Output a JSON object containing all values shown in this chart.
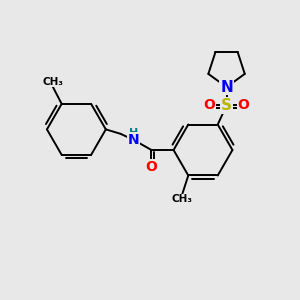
{
  "background_color": "#e8e8e8",
  "bond_color": "#000000",
  "figsize": [
    3.0,
    3.0
  ],
  "dpi": 100,
  "atom_colors": {
    "N": "#0000ff",
    "O": "#ff0000",
    "S": "#b8b800",
    "H": "#008080",
    "C": "#000000"
  },
  "bond_lw": 1.4,
  "font_size_atom": 10,
  "font_size_small": 8
}
